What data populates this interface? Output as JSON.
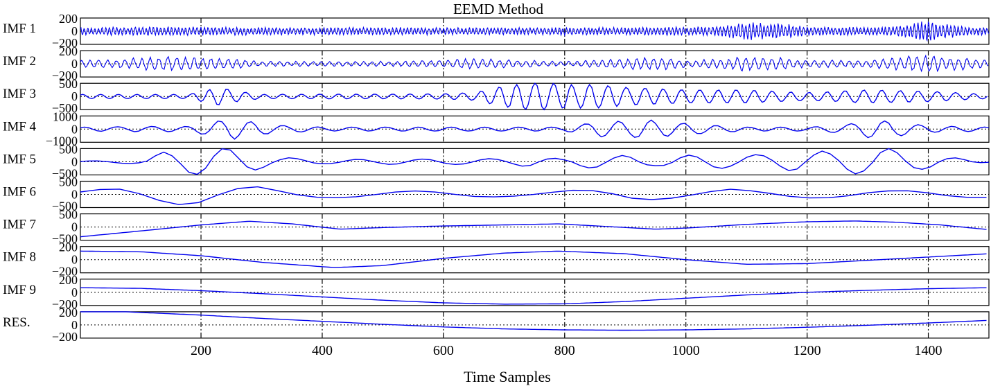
{
  "chart_data": {
    "type": "line",
    "title": "EEMD Method",
    "xlabel": "Time Samples",
    "xlim": [
      1,
      1500
    ],
    "xticks": [
      200,
      400,
      600,
      800,
      1000,
      1200,
      1400
    ],
    "xtick_labels": [
      "200",
      "400",
      "600",
      "800",
      "1000",
      "1200",
      "1400"
    ],
    "vertical_gridlines": "dash-dot at each x tick",
    "zero_line": "dotted at y = 0 in every panel",
    "line_color": "#0000ee",
    "panels": [
      {
        "label": "IMF 1",
        "ylim": [
          -200,
          200
        ],
        "yticks": [
          "200",
          "0",
          "-200"
        ],
        "x": [
          1,
          100,
          200,
          300,
          400,
          500,
          600,
          700,
          800,
          900,
          1000,
          1050,
          1100,
          1150,
          1200,
          1250,
          1300,
          1350,
          1400,
          1450,
          1500
        ],
        "amplitude": [
          60,
          70,
          70,
          60,
          60,
          60,
          60,
          60,
          60,
          60,
          70,
          70,
          140,
          130,
          70,
          70,
          60,
          80,
          180,
          80,
          60
        ]
      },
      {
        "label": "IMF 2",
        "ylim": [
          -200,
          200
        ],
        "yticks": [
          "200",
          "0",
          "-200"
        ],
        "x": [
          1,
          40,
          100,
          150,
          200,
          260,
          300,
          400,
          500,
          600,
          650,
          700,
          800,
          900,
          960,
          1000,
          1050,
          1100,
          1150,
          1200,
          1300,
          1400,
          1500
        ],
        "amplitude": [
          60,
          60,
          100,
          120,
          100,
          80,
          40,
          40,
          40,
          60,
          90,
          70,
          40,
          80,
          130,
          50,
          80,
          120,
          110,
          60,
          60,
          150,
          60
        ]
      },
      {
        "label": "IMF 3",
        "ylim": [
          -500,
          500
        ],
        "yticks": [
          "500",
          "0",
          "-500"
        ],
        "x": [
          1,
          100,
          180,
          230,
          260,
          300,
          400,
          500,
          600,
          650,
          700,
          760,
          800,
          850,
          900,
          950,
          1000,
          1050,
          1100,
          1150,
          1200,
          1300,
          1400,
          1500
        ],
        "amplitude": [
          80,
          80,
          80,
          350,
          200,
          80,
          90,
          90,
          100,
          150,
          400,
          550,
          450,
          450,
          350,
          300,
          250,
          250,
          250,
          200,
          150,
          250,
          200,
          80
        ]
      },
      {
        "label": "IMF 4",
        "ylim": [
          -1000,
          1000
        ],
        "yticks": [
          "1000",
          "0",
          "-1000"
        ],
        "x": [
          1,
          100,
          180,
          250,
          320,
          400,
          500,
          600,
          700,
          800,
          860,
          900,
          940,
          980,
          1040,
          1100,
          1200,
          1260,
          1300,
          1340,
          1400,
          1500
        ],
        "amplitude": [
          150,
          200,
          200,
          800,
          300,
          150,
          150,
          150,
          150,
          150,
          600,
          600,
          700,
          500,
          300,
          150,
          150,
          300,
          650,
          600,
          250,
          150
        ]
      },
      {
        "label": "IMF 5",
        "ylim": [
          -500,
          500
        ],
        "yticks": [
          "500",
          "0",
          "-500"
        ],
        "x": [
          1,
          100,
          140,
          200,
          260,
          310,
          400,
          500,
          600,
          700,
          750,
          800,
          860,
          950,
          1000,
          1100,
          1200,
          1270,
          1330,
          1400,
          1500
        ],
        "amplitude": [
          20,
          80,
          380,
          520,
          520,
          200,
          80,
          100,
          100,
          120,
          200,
          100,
          300,
          150,
          250,
          250,
          380,
          450,
          520,
          250,
          20
        ]
      },
      {
        "label": "IMF 6",
        "ylim": [
          -500,
          500
        ],
        "yticks": [
          "500",
          "0",
          "-500"
        ],
        "x": [
          1,
          140,
          260,
          330,
          430,
          590,
          700,
          800,
          900,
          1000,
          1060,
          1150,
          1300,
          1420,
          1500
        ],
        "amplitude": [
          120,
          410,
          360,
          210,
          120,
          130,
          90,
          150,
          220,
          170,
          210,
          130,
          150,
          140,
          120
        ]
      },
      {
        "label": "IMF 7",
        "ylim": [
          -500,
          500
        ],
        "yticks": [
          "500",
          "0",
          "-500"
        ],
        "x": [
          1,
          100,
          200,
          280,
          350,
          430,
          500,
          600,
          700,
          790,
          870,
          950,
          1000,
          1100,
          1200,
          1280,
          1350,
          1420,
          1500
        ],
        "y": [
          -370,
          -150,
          80,
          220,
          120,
          -80,
          -20,
          40,
          80,
          120,
          20,
          -80,
          -40,
          100,
          200,
          230,
          180,
          80,
          -100
        ]
      },
      {
        "label": "IMF 8",
        "ylim": [
          -200,
          200
        ],
        "yticks": [
          "200",
          "0",
          "-200"
        ],
        "x": [
          1,
          100,
          200,
          300,
          420,
          500,
          600,
          700,
          790,
          900,
          1000,
          1100,
          1200,
          1300,
          1400,
          1500
        ],
        "y": [
          130,
          120,
          60,
          -40,
          -120,
          -90,
          20,
          100,
          130,
          90,
          0,
          -70,
          -60,
          -10,
          40,
          90
        ]
      },
      {
        "label": "IMF 9",
        "ylim": [
          -200,
          200
        ],
        "yticks": [
          "200",
          "0",
          "-200"
        ],
        "x": [
          1,
          100,
          200,
          300,
          400,
          500,
          600,
          700,
          800,
          900,
          1000,
          1100,
          1200,
          1300,
          1400,
          1500
        ],
        "y": [
          70,
          60,
          25,
          -20,
          -70,
          -120,
          -160,
          -180,
          -175,
          -140,
          -90,
          -40,
          0,
          30,
          55,
          70
        ]
      },
      {
        "label": "RES.",
        "ylim": [
          -200,
          200
        ],
        "yticks": [
          "200",
          "0",
          "-200"
        ],
        "x": [
          1,
          100,
          200,
          300,
          400,
          500,
          600,
          700,
          800,
          900,
          1000,
          1100,
          1200,
          1300,
          1400,
          1500
        ],
        "y": [
          230,
          190,
          150,
          100,
          55,
          10,
          -30,
          -60,
          -75,
          -80,
          -75,
          -60,
          -35,
          -5,
          30,
          70
        ]
      }
    ]
  }
}
